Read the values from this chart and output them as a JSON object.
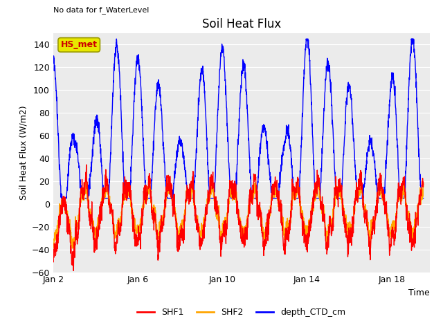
{
  "title": "Soil Heat Flux",
  "top_left_text": "No data for f_WaterLevel",
  "ylabel": "Soil Heat Flux (W/m2)",
  "xlabel": "Time",
  "ylim": [
    -60,
    150
  ],
  "yticks": [
    -60,
    -40,
    -20,
    0,
    20,
    40,
    60,
    80,
    100,
    120,
    140
  ],
  "xtick_labels": [
    "Jan 2",
    "Jan 6",
    "Jan 10",
    "Jan 14",
    "Jan 18"
  ],
  "xtick_positions": [
    2,
    6,
    10,
    14,
    18
  ],
  "xlim": [
    2,
    19.8
  ],
  "legend_labels": [
    "SHF1",
    "SHF2",
    "depth_CTD_cm"
  ],
  "legend_colors": [
    "#ff0000",
    "#ffa500",
    "#0000ff"
  ],
  "hs_met_box_color": "#e8e800",
  "hs_met_text": "HS_met",
  "hs_met_text_color": "#cc0000",
  "fig_bg_color": "#ffffff",
  "plot_bg_color": "#ebebeb",
  "seed": 42
}
